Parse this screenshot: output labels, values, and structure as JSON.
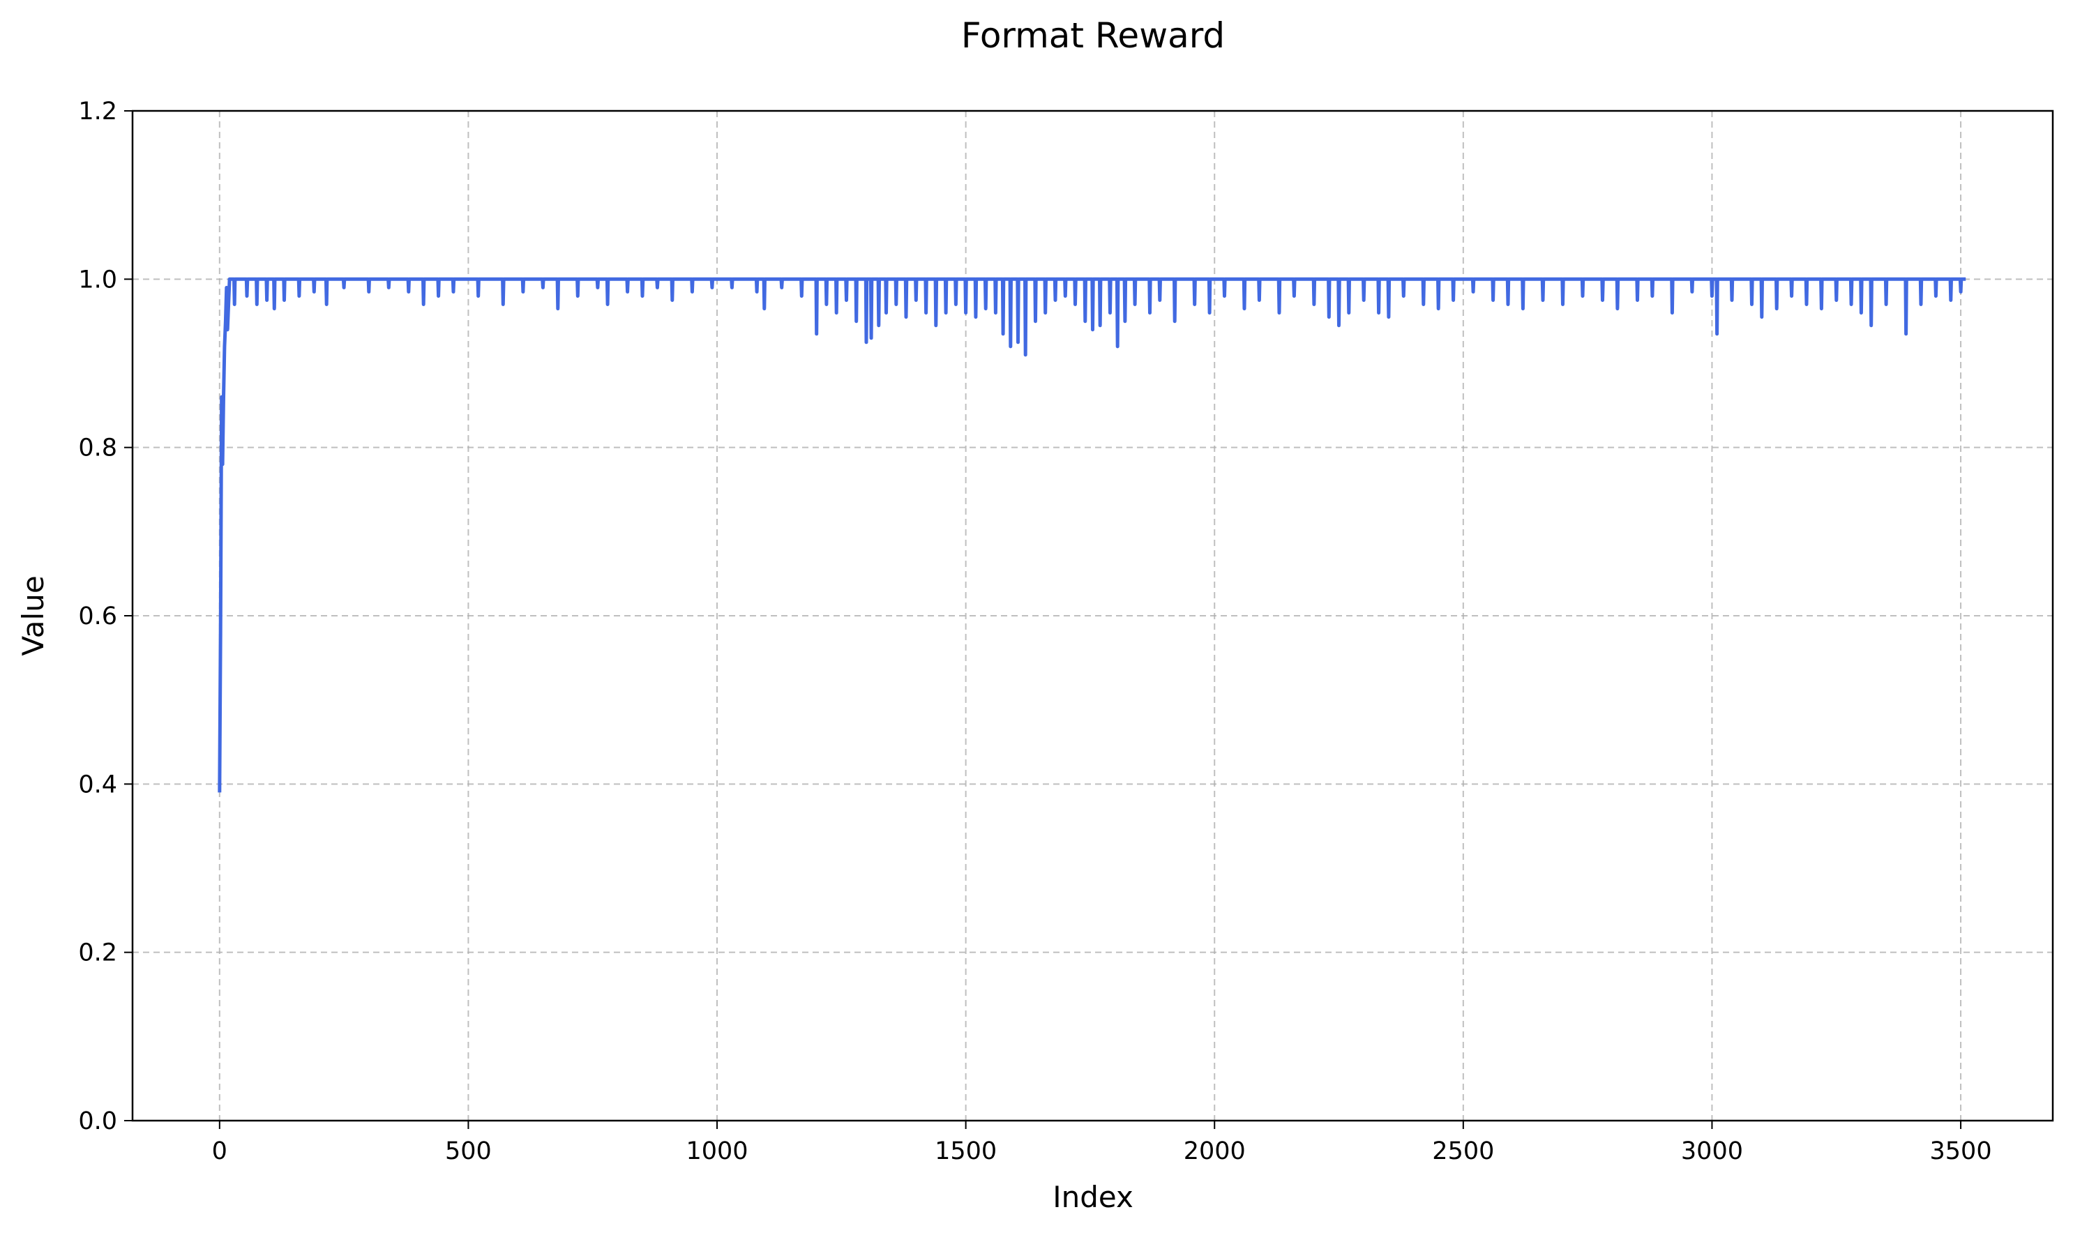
{
  "chart_data": {
    "type": "line",
    "title": "Format Reward",
    "xlabel": "Index",
    "ylabel": "Value",
    "xlim": [
      -175,
      3685
    ],
    "ylim": [
      0,
      1.2
    ],
    "xticks": [
      0,
      500,
      1000,
      1500,
      2000,
      2500,
      3000,
      3500
    ],
    "yticks": [
      0.0,
      0.2,
      0.4,
      0.6,
      0.8,
      1.0,
      1.2
    ],
    "grid": true,
    "grid_style": "dashed",
    "legend": "none",
    "series": [
      {
        "color": "#4169e1",
        "x_start": 0,
        "x_end": 3510,
        "baseline": 1.0,
        "start_points": [
          [
            0,
            0.39
          ],
          [
            2,
            0.58
          ],
          [
            4,
            0.86
          ],
          [
            6,
            0.78
          ],
          [
            8,
            0.86
          ],
          [
            10,
            0.92
          ],
          [
            12,
            0.95
          ],
          [
            14,
            0.99
          ],
          [
            16,
            0.94
          ],
          [
            18,
            0.97
          ],
          [
            20,
            1.0
          ]
        ],
        "dips": [
          [
            30,
            0.97
          ],
          [
            55,
            0.98
          ],
          [
            75,
            0.97
          ],
          [
            95,
            0.975
          ],
          [
            110,
            0.965
          ],
          [
            130,
            0.975
          ],
          [
            160,
            0.98
          ],
          [
            190,
            0.985
          ],
          [
            215,
            0.97
          ],
          [
            250,
            0.99
          ],
          [
            300,
            0.985
          ],
          [
            340,
            0.99
          ],
          [
            380,
            0.985
          ],
          [
            410,
            0.97
          ],
          [
            440,
            0.98
          ],
          [
            470,
            0.985
          ],
          [
            520,
            0.98
          ],
          [
            570,
            0.97
          ],
          [
            610,
            0.985
          ],
          [
            650,
            0.99
          ],
          [
            680,
            0.965
          ],
          [
            720,
            0.98
          ],
          [
            760,
            0.99
          ],
          [
            780,
            0.97
          ],
          [
            820,
            0.985
          ],
          [
            850,
            0.98
          ],
          [
            880,
            0.99
          ],
          [
            910,
            0.975
          ],
          [
            950,
            0.985
          ],
          [
            990,
            0.99
          ],
          [
            1030,
            0.99
          ],
          [
            1080,
            0.985
          ],
          [
            1095,
            0.965
          ],
          [
            1130,
            0.99
          ],
          [
            1170,
            0.98
          ],
          [
            1200,
            0.935
          ],
          [
            1220,
            0.97
          ],
          [
            1240,
            0.96
          ],
          [
            1260,
            0.975
          ],
          [
            1280,
            0.95
          ],
          [
            1300,
            0.925
          ],
          [
            1310,
            0.93
          ],
          [
            1325,
            0.945
          ],
          [
            1340,
            0.96
          ],
          [
            1360,
            0.97
          ],
          [
            1380,
            0.955
          ],
          [
            1400,
            0.975
          ],
          [
            1420,
            0.96
          ],
          [
            1440,
            0.945
          ],
          [
            1460,
            0.96
          ],
          [
            1480,
            0.97
          ],
          [
            1500,
            0.96
          ],
          [
            1520,
            0.955
          ],
          [
            1540,
            0.965
          ],
          [
            1560,
            0.96
          ],
          [
            1575,
            0.935
          ],
          [
            1590,
            0.92
          ],
          [
            1605,
            0.925
          ],
          [
            1620,
            0.91
          ],
          [
            1640,
            0.95
          ],
          [
            1660,
            0.96
          ],
          [
            1680,
            0.975
          ],
          [
            1700,
            0.98
          ],
          [
            1720,
            0.97
          ],
          [
            1740,
            0.95
          ],
          [
            1755,
            0.94
          ],
          [
            1770,
            0.945
          ],
          [
            1790,
            0.96
          ],
          [
            1805,
            0.92
          ],
          [
            1820,
            0.95
          ],
          [
            1840,
            0.97
          ],
          [
            1870,
            0.96
          ],
          [
            1890,
            0.975
          ],
          [
            1920,
            0.95
          ],
          [
            1960,
            0.97
          ],
          [
            1990,
            0.96
          ],
          [
            2020,
            0.98
          ],
          [
            2060,
            0.965
          ],
          [
            2090,
            0.975
          ],
          [
            2130,
            0.96
          ],
          [
            2160,
            0.98
          ],
          [
            2200,
            0.97
          ],
          [
            2230,
            0.955
          ],
          [
            2250,
            0.945
          ],
          [
            2270,
            0.96
          ],
          [
            2300,
            0.975
          ],
          [
            2330,
            0.96
          ],
          [
            2350,
            0.955
          ],
          [
            2380,
            0.98
          ],
          [
            2420,
            0.97
          ],
          [
            2450,
            0.965
          ],
          [
            2480,
            0.975
          ],
          [
            2520,
            0.985
          ],
          [
            2560,
            0.975
          ],
          [
            2590,
            0.97
          ],
          [
            2620,
            0.965
          ],
          [
            2660,
            0.975
          ],
          [
            2700,
            0.97
          ],
          [
            2740,
            0.98
          ],
          [
            2780,
            0.975
          ],
          [
            2810,
            0.965
          ],
          [
            2850,
            0.975
          ],
          [
            2880,
            0.98
          ],
          [
            2920,
            0.96
          ],
          [
            2960,
            0.985
          ],
          [
            3000,
            0.98
          ],
          [
            3010,
            0.935
          ],
          [
            3040,
            0.975
          ],
          [
            3080,
            0.97
          ],
          [
            3100,
            0.955
          ],
          [
            3130,
            0.965
          ],
          [
            3160,
            0.98
          ],
          [
            3190,
            0.97
          ],
          [
            3220,
            0.965
          ],
          [
            3250,
            0.975
          ],
          [
            3280,
            0.97
          ],
          [
            3300,
            0.96
          ],
          [
            3320,
            0.945
          ],
          [
            3350,
            0.97
          ],
          [
            3390,
            0.935
          ],
          [
            3420,
            0.97
          ],
          [
            3450,
            0.98
          ],
          [
            3480,
            0.975
          ],
          [
            3500,
            0.985
          ]
        ]
      }
    ]
  }
}
